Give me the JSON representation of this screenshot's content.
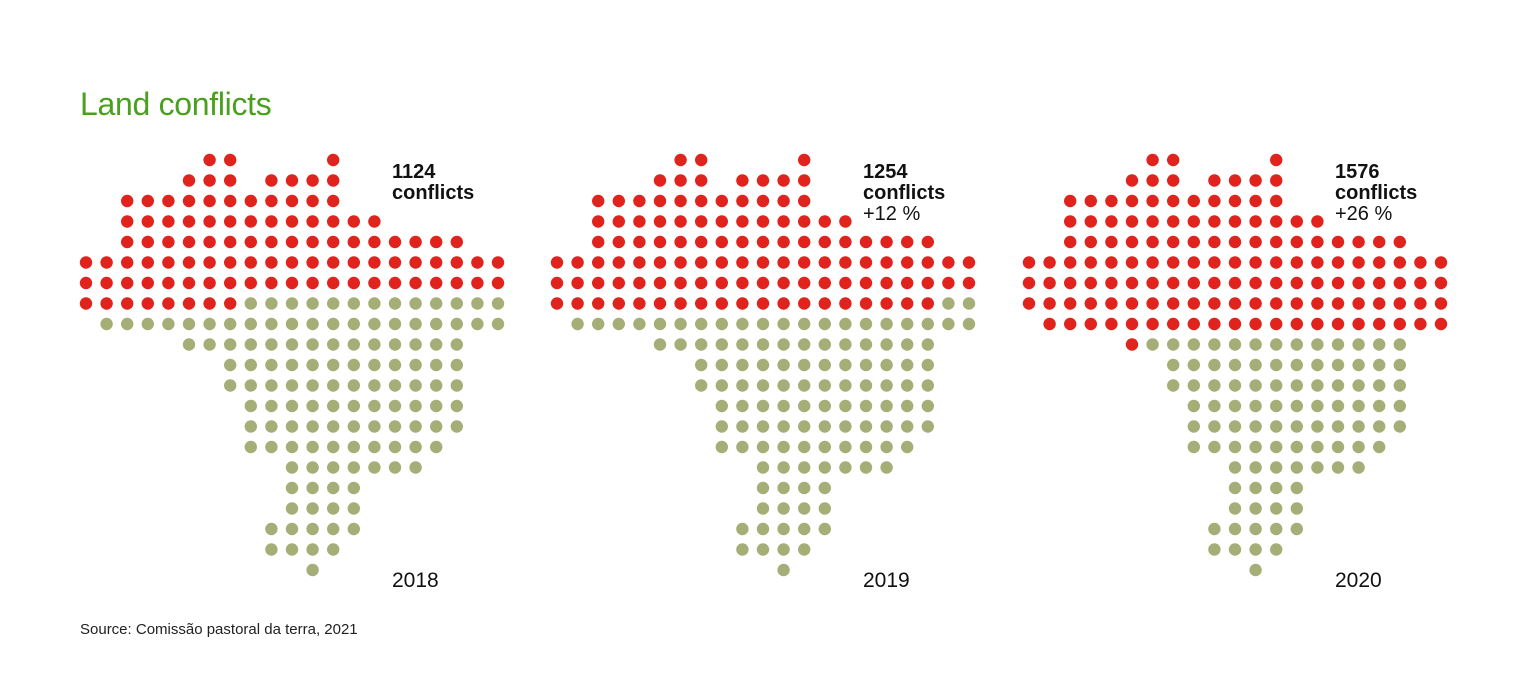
{
  "title": "Land conflicts",
  "source": "Source: Comissão pastoral da terra, 2021",
  "colors": {
    "title": "#4aa01e",
    "conflict": "#e1231e",
    "land": "#a6ae78"
  },
  "chart_data": {
    "type": "dot-map",
    "unit": "conflicts",
    "panels": [
      {
        "year": "2018",
        "value_text": "1124",
        "unit_text": "conflicts",
        "change_text": "",
        "value": 1124,
        "red_dots": 101
      },
      {
        "year": "2019",
        "value_text": "1254",
        "unit_text": "conflicts",
        "change_text": "+12 %",
        "value": 1254,
        "change_pct": 12,
        "red_dots": 112
      },
      {
        "year": "2020",
        "value_text": "1576",
        "unit_text": "conflicts",
        "change_text": "+26 %",
        "value": 1576,
        "change_pct": 26,
        "red_dots": 135
      }
    ]
  }
}
